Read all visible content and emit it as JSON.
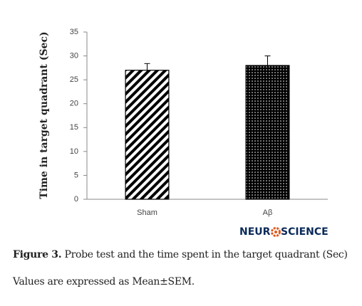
{
  "chart_data": {
    "type": "bar",
    "ylabel": "Time  in target quadrant  (Sec)",
    "categories": [
      "Sham",
      "Aβ"
    ],
    "values": [
      27,
      28
    ],
    "errors": [
      1.4,
      2
    ],
    "ylim": [
      0,
      35
    ],
    "yticks": [
      0,
      5,
      10,
      15,
      20,
      25,
      30,
      35
    ],
    "grid": false
  },
  "logo": {
    "left": "NEUR",
    "right": "SCIENCE"
  },
  "caption": {
    "label": "Figure 3.",
    "text": " Probe test and the time spent in the target quadrant (Sec)",
    "note": "Values are expressed as Mean±SEM."
  }
}
